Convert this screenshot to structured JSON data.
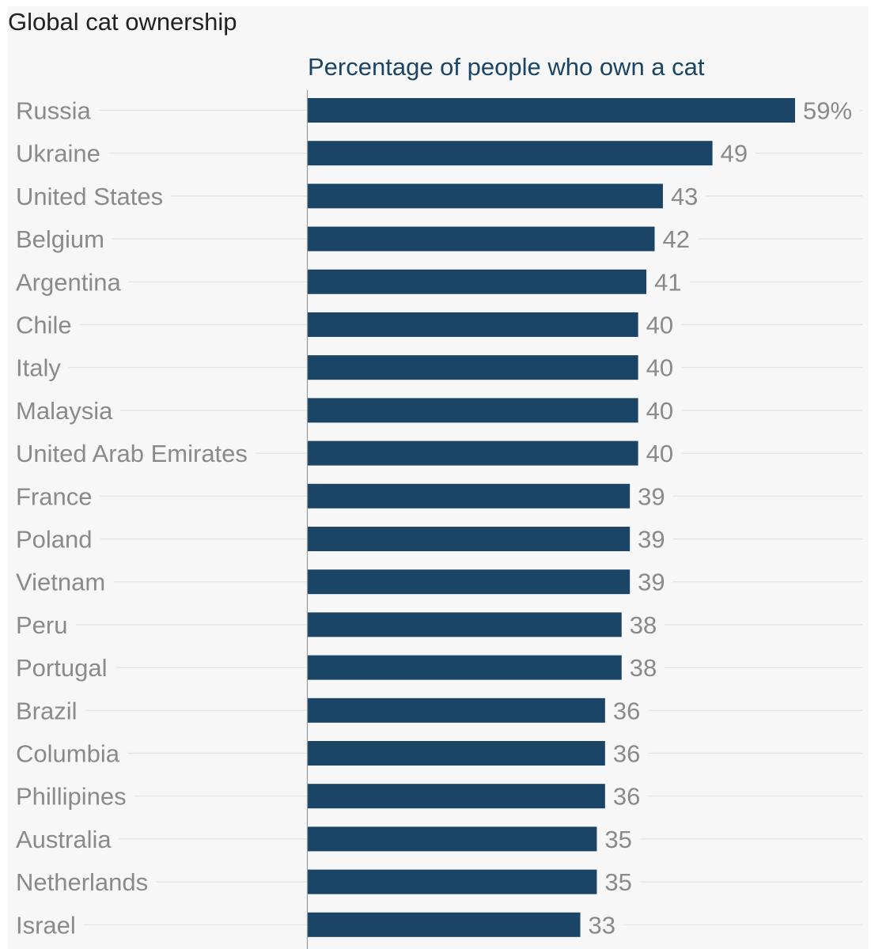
{
  "chart_data": {
    "type": "bar",
    "orientation": "horizontal",
    "title": "Global cat ownership",
    "subtitle": "Percentage of people who own a cat",
    "categories": [
      "Russia",
      "Ukraine",
      "United States",
      "Belgium",
      "Argentina",
      "Chile",
      "Italy",
      "Malaysia",
      "United Arab Emirates",
      "France",
      "Poland",
      "Vietnam",
      "Peru",
      "Portugal",
      "Brazil",
      "Columbia",
      "Phillipines",
      "Australia",
      "Netherlands",
      "Israel"
    ],
    "values": [
      59,
      49,
      43,
      42,
      41,
      40,
      40,
      40,
      40,
      39,
      39,
      39,
      38,
      38,
      36,
      36,
      36,
      35,
      35,
      33
    ],
    "value_labels": [
      "59%",
      "49",
      "43",
      "42",
      "41",
      "40",
      "40",
      "40",
      "40",
      "39",
      "39",
      "39",
      "38",
      "38",
      "36",
      "36",
      "36",
      "35",
      "35",
      "33"
    ],
    "xlim": [
      0,
      59
    ],
    "xlabel": "",
    "ylabel": "",
    "grid": true,
    "bar_color": "#1a4566"
  }
}
